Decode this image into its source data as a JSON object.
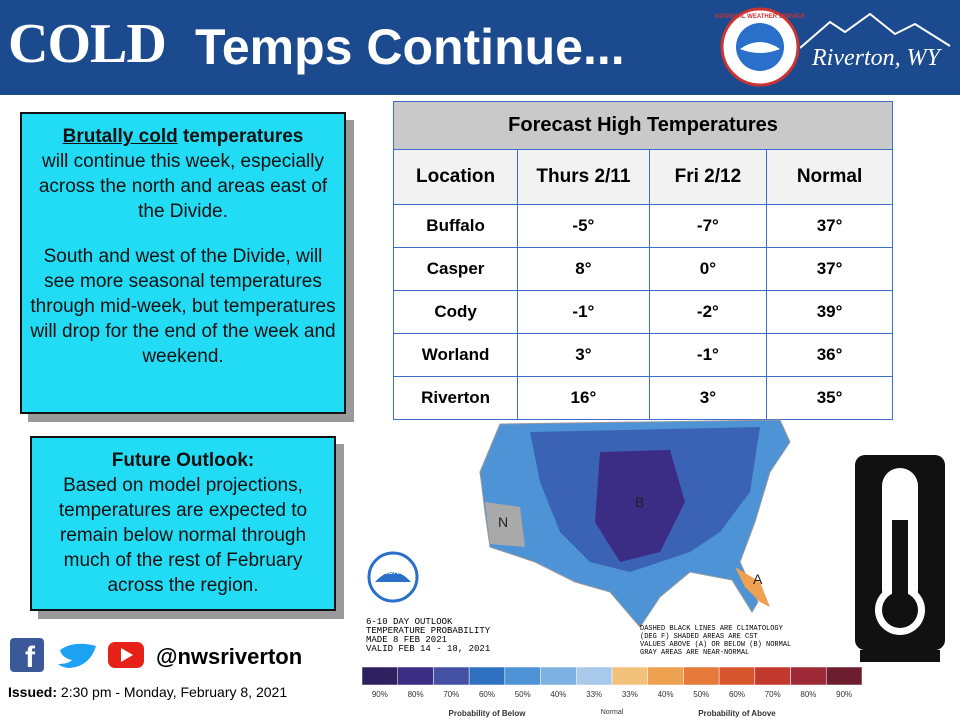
{
  "header": {
    "title_cold": "COLD",
    "title_rest": "Temps Continue...",
    "logo_text": "NATIONAL WEATHER SERVICE",
    "office": "Riverton, WY"
  },
  "summary_box": {
    "lead_underlined": "Brutally cold",
    "lead_rest": "temperatures",
    "paragraph_1": "will continue this week, especially across the north and areas east of the Divide.",
    "paragraph_2": "South and west of the Divide, will see more seasonal temperatures through mid-week, but temperatures will drop for the end of the week and weekend."
  },
  "outlook_box": {
    "heading": "Future Outlook:",
    "body": "Based on model projections, temperatures are expected to remain below normal through much of the rest of February across the region."
  },
  "table": {
    "title": "Forecast High Temperatures",
    "headers": [
      "Location",
      "Thurs 2/11",
      "Fri 2/12",
      "Normal"
    ],
    "rows": [
      [
        "Buffalo",
        "-5°",
        "-7°",
        "37°"
      ],
      [
        "Casper",
        "8°",
        "0°",
        "37°"
      ],
      [
        "Cody",
        "-1°",
        "-2°",
        "39°"
      ],
      [
        "Worland",
        "3°",
        "-1°",
        "36°"
      ],
      [
        "Riverton",
        "16°",
        "3°",
        "35°"
      ]
    ]
  },
  "map": {
    "agency": "NOAA",
    "outlook_lines": [
      "6-10 DAY OUTLOOK",
      "TEMPERATURE PROBABILITY",
      "MADE 8 FEB 2021",
      "VALID FEB 14 - 18, 2021"
    ],
    "note_lines": [
      "DASHED BLACK LINES ARE CLIMATOLOGY",
      "(DEG F) SHADED AREAS ARE CST",
      "VALUES ABOVE (A) OR BELOW (B) NORMAL",
      "GRAY AREAS ARE NEAR-NORMAL"
    ],
    "region_letters": [
      "B",
      "N",
      "A"
    ],
    "legend_labels": [
      "90%",
      "80%",
      "70%",
      "60%",
      "50%",
      "40%",
      "33%",
      "33%",
      "40%",
      "50%",
      "60%",
      "70%",
      "80%",
      "90%"
    ],
    "legend_colors": [
      "#2e1f5e",
      "#3b2d83",
      "#4450a2",
      "#2f6fbf",
      "#4e93d6",
      "#7fb2e2",
      "#a9c9ea",
      "#f2c27c",
      "#efa152",
      "#e57a3a",
      "#d6552d",
      "#c2392f",
      "#9d2a36",
      "#6c1e2e"
    ],
    "below_label": "Probability of Below",
    "normal_label": "Normal",
    "above_label": "Probability of Above"
  },
  "footer": {
    "handle": "@nwsriverton",
    "issued_label": "Issued:",
    "issued_text": "2:30 pm - Monday, February 8, 2021"
  }
}
